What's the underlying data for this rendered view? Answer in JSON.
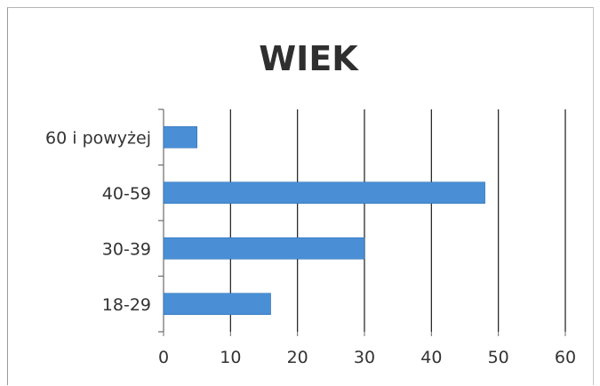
{
  "chart_data": {
    "type": "bar",
    "orientation": "horizontal",
    "title": "WIEK",
    "categories": [
      "60 i powyżej",
      "40-59",
      "30-39",
      "18-29"
    ],
    "values": [
      5,
      48,
      30,
      16
    ],
    "xlim": [
      0,
      60
    ],
    "xticks": [
      0,
      10,
      20,
      30,
      40,
      50,
      60
    ],
    "grid": true,
    "legend": false,
    "colors": {
      "bar": "#4a8fd6",
      "bar_edge": "#2f6fb5",
      "grid": "#1a1a1a",
      "axis": "#6b6b6b"
    }
  }
}
